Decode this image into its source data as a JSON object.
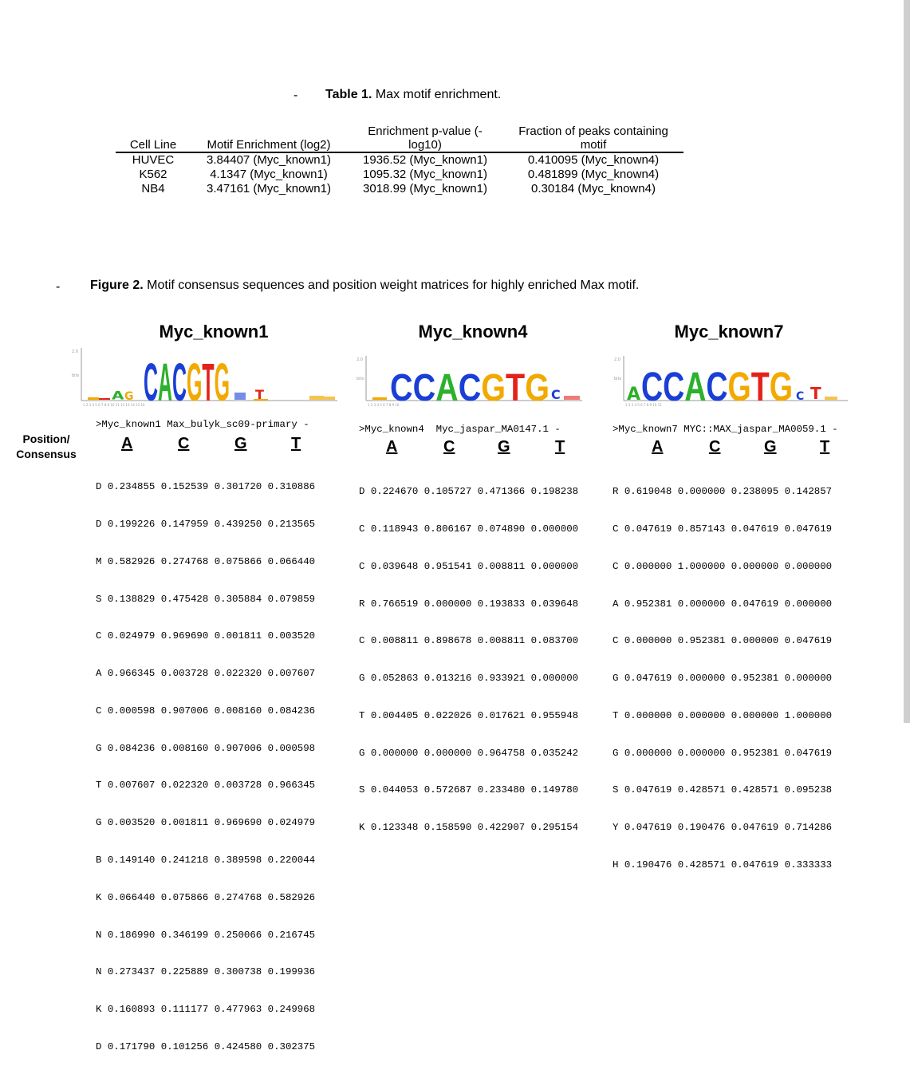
{
  "table1": {
    "dash": "-",
    "caption_bold": "Table 1.",
    "caption_text": "Max motif enrichment.",
    "headers": [
      "Cell Line",
      "Motif Enrichment (log2)",
      "Enrichment p-value (-log10)",
      "Fraction of peaks containing motif"
    ],
    "rows": [
      [
        "HUVEC",
        "3.84407  (Myc_known1)",
        "1936.52  (Myc_known1)",
        "0.410095  (Myc_known4)"
      ],
      [
        "K562",
        "4.1347  (Myc_known1)",
        "1095.32  (Myc_known1)",
        "0.481899  (Myc_known4)"
      ],
      [
        "NB4",
        "3.47161  (Myc_known1)",
        "3018.99  (Myc_known1)",
        "0.30184  (Myc_known4)"
      ]
    ]
  },
  "figure2": {
    "dash": "-",
    "caption_bold": "Figure 2.",
    "caption_text": "Motif consensus sequences and position weight matrices for highly enriched Max motif.",
    "side_label": "Position/\nConsensus",
    "base_headers": [
      "A",
      "C",
      "G",
      "T"
    ],
    "colors": {
      "A": "#2db02d",
      "C": "#1a3fd6",
      "G": "#f2a900",
      "T": "#e3231b"
    },
    "motifs": [
      {
        "title": "Myc_known1",
        "header": ">Myc_known1 Max_bulyk_sc09-primary -",
        "logo": "CACGTG",
        "rows": [
          "D 0.234855 0.152539 0.301720 0.310886",
          "D 0.199226 0.147959 0.439250 0.213565",
          "M 0.582926 0.274768 0.075866 0.066440",
          "S 0.138829 0.475428 0.305884 0.079859",
          "C 0.024979 0.969690 0.001811 0.003520",
          "A 0.966345 0.003728 0.022320 0.007607",
          "C 0.000598 0.907006 0.008160 0.084236",
          "G 0.084236 0.008160 0.907006 0.000598",
          "T 0.007607 0.022320 0.003728 0.966345",
          "G 0.003520 0.001811 0.969690 0.024979",
          "B 0.149140 0.241218 0.389598 0.220044",
          "K 0.066440 0.075866 0.274768 0.582926",
          "N 0.186990 0.346199 0.250066 0.216745",
          "N 0.273437 0.225889 0.300738 0.199936",
          "K 0.160893 0.111177 0.477963 0.249968",
          "D 0.171790 0.101256 0.424580 0.302375"
        ]
      },
      {
        "title": "Myc_known4",
        "header": ">Myc_known4  Myc_jaspar_MA0147.1 -",
        "logo": "CCACGTGC",
        "rows": [
          "D 0.224670 0.105727 0.471366 0.198238",
          "C 0.118943 0.806167 0.074890 0.000000",
          "C 0.039648 0.951541 0.008811 0.000000",
          "R 0.766519 0.000000 0.193833 0.039648",
          "C 0.008811 0.898678 0.008811 0.083700",
          "G 0.052863 0.013216 0.933921 0.000000",
          "T 0.004405 0.022026 0.017621 0.955948",
          "G 0.000000 0.000000 0.964758 0.035242",
          "S 0.044053 0.572687 0.233480 0.149780",
          "K 0.123348 0.158590 0.422907 0.295154"
        ]
      },
      {
        "title": "Myc_known7",
        "header": ">Myc_known7 MYC::MAX_jaspar_MA0059.1 -",
        "logo": "ACCACGTGCT",
        "rows": [
          "R 0.619048 0.000000 0.238095 0.142857",
          "C 0.047619 0.857143 0.047619 0.047619",
          "C 0.000000 1.000000 0.000000 0.000000",
          "A 0.952381 0.000000 0.047619 0.000000",
          "C 0.000000 0.952381 0.000000 0.047619",
          "G 0.047619 0.000000 0.952381 0.000000",
          "T 0.000000 0.000000 0.000000 1.000000",
          "G 0.000000 0.000000 0.952381 0.047619",
          "S 0.047619 0.428571 0.428571 0.095238",
          "Y 0.047619 0.190476 0.047619 0.714286",
          "H 0.190476 0.428571 0.047619 0.333333"
        ]
      }
    ]
  }
}
